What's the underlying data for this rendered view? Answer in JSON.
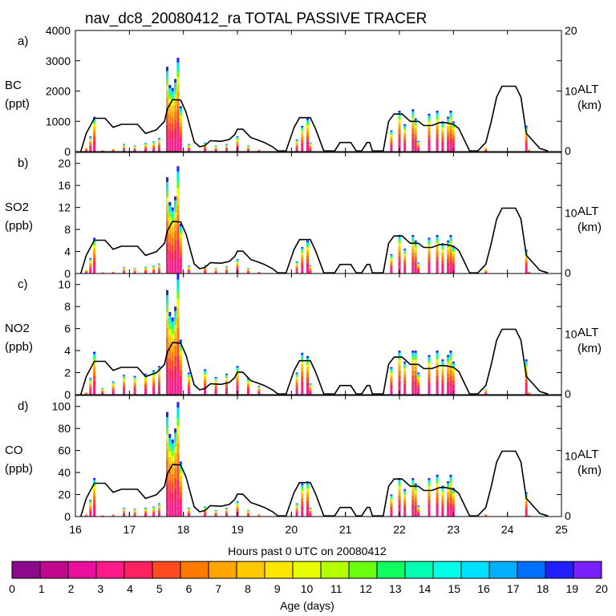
{
  "chart_data": {
    "type": "stacked-area-with-line",
    "title": "nav_dc8_20080412_ra TOTAL PASSIVE TRACER",
    "xlabel": "Hours past 0 UTC on 20080412",
    "x_ticks": [
      "16",
      "17",
      "18",
      "19",
      "20",
      "21",
      "22",
      "23",
      "24",
      "25"
    ],
    "xlim": [
      16,
      25
    ],
    "right_axis": {
      "label": "ALT",
      "units": "(km)",
      "ticks": [
        "0",
        "10",
        "20"
      ],
      "ylim": [
        0,
        20
      ]
    },
    "altitude_km": {
      "x": [
        16.1,
        16.2,
        16.35,
        16.55,
        16.7,
        16.85,
        17.15,
        17.3,
        17.4,
        17.5,
        17.65,
        17.7,
        17.8,
        17.95,
        18.05,
        18.2,
        18.3,
        18.4,
        18.5,
        18.7,
        18.85,
        18.95,
        19.0,
        19.1,
        19.25,
        19.35,
        19.5,
        19.65,
        19.75,
        19.9,
        20.05,
        20.15,
        20.35,
        20.45,
        20.6,
        20.8,
        20.9,
        21.1,
        21.2,
        21.3,
        21.4,
        21.45,
        21.5,
        21.7,
        21.8,
        21.9,
        22.05,
        22.2,
        22.35,
        22.45,
        22.6,
        22.75,
        22.85,
        23.0,
        23.1,
        23.3,
        23.45,
        23.6,
        23.7,
        23.8,
        23.9,
        24.0,
        24.15,
        24.25,
        24.35,
        24.45,
        24.6,
        24.75
      ],
      "y": [
        0,
        3,
        5.5,
        5.5,
        4,
        4.5,
        4.5,
        3,
        3.3,
        3.6,
        5,
        7,
        8.6,
        8.5,
        6.5,
        1.6,
        0.8,
        1,
        1.8,
        1.7,
        2,
        2.8,
        3.7,
        3.7,
        2.3,
        2,
        1.5,
        0.8,
        0.1,
        0.1,
        4,
        5.6,
        5.6,
        3.7,
        0.1,
        0.1,
        1.5,
        1.5,
        0.1,
        0.1,
        1.5,
        1.5,
        0.1,
        0.1,
        5,
        6.2,
        6.2,
        5,
        5,
        4.3,
        4.3,
        4.8,
        4.8,
        4.5,
        3.8,
        0.1,
        0.1,
        1.5,
        5,
        9,
        10.8,
        10.8,
        10.8,
        9,
        3,
        2,
        0.5,
        0.1
      ]
    },
    "age_colorbar": {
      "label": "Age (days)",
      "ticks": [
        "0",
        "1",
        "2",
        "3",
        "4",
        "5",
        "6",
        "7",
        "8",
        "9",
        "10",
        "11",
        "12",
        "13",
        "14",
        "15",
        "16",
        "17",
        "18",
        "19",
        "20"
      ],
      "colors": [
        "#8b0a8b",
        "#c0088e",
        "#e8109c",
        "#ff1a8c",
        "#ff2060",
        "#ff4a20",
        "#ff7a00",
        "#ffa500",
        "#ffc800",
        "#ffe600",
        "#e8ff00",
        "#b4ff00",
        "#6aff10",
        "#10ff60",
        "#00ffb0",
        "#00ffe6",
        "#00e0ff",
        "#00b0ff",
        "#0070ff",
        "#2020ff",
        "#7a20ff"
      ]
    },
    "panels": [
      {
        "letter": "a)",
        "species": "BC",
        "units": "(ppt)",
        "ylim": [
          0,
          4000
        ],
        "y_ticks": [
          "0",
          "1000",
          "2000",
          "3000",
          "4000"
        ],
        "tracer": {
          "x": [
            16.2,
            16.28,
            16.35,
            16.5,
            16.7,
            16.9,
            17.1,
            17.3,
            17.45,
            17.55,
            17.7,
            17.75,
            17.8,
            17.85,
            17.9,
            17.95,
            18.1,
            18.4,
            18.6,
            18.8,
            19.0,
            19.2,
            19.4,
            20.1,
            20.2,
            20.3,
            20.35,
            21.85,
            22.0,
            22.1,
            22.25,
            22.3,
            22.35,
            22.55,
            22.7,
            22.8,
            22.9,
            22.95,
            23.0,
            23.6,
            24.35,
            24.4
          ],
          "y": [
            150,
            500,
            1150,
            80,
            120,
            250,
            200,
            280,
            330,
            450,
            2800,
            2200,
            2100,
            2400,
            3100,
            1500,
            250,
            300,
            200,
            250,
            500,
            200,
            100,
            400,
            850,
            1100,
            300,
            700,
            1350,
            900,
            1400,
            1100,
            350,
            1250,
            1350,
            1000,
            1150,
            1350,
            1000,
            150,
            850,
            100
          ]
        }
      },
      {
        "letter": "b)",
        "species": "SO2",
        "units": "(ppb)",
        "ylim": [
          0,
          22
        ],
        "y_ticks": [
          "0",
          "4",
          "8",
          "12",
          "16",
          "20"
        ],
        "tracer": {
          "x": [
            16.2,
            16.28,
            16.35,
            16.5,
            16.7,
            16.9,
            17.1,
            17.3,
            17.45,
            17.55,
            17.7,
            17.75,
            17.8,
            17.85,
            17.9,
            17.95,
            18.1,
            18.4,
            18.6,
            18.8,
            19.0,
            19.2,
            19.4,
            20.1,
            20.2,
            20.3,
            20.35,
            21.85,
            22.0,
            22.1,
            22.25,
            22.3,
            22.35,
            22.55,
            22.7,
            22.8,
            22.9,
            22.95,
            23.0,
            23.6,
            24.35,
            24.4
          ],
          "y": [
            0.8,
            2.8,
            6.5,
            0.4,
            0.5,
            1.2,
            1.0,
            1.2,
            1.4,
            1.8,
            17.5,
            13,
            12,
            14,
            19.5,
            9,
            1.4,
            1.5,
            1.0,
            1.3,
            2.6,
            1.0,
            0.5,
            2.2,
            4.8,
            6,
            1.5,
            3.5,
            7,
            4.5,
            7,
            6,
            2,
            6.5,
            7,
            5.5,
            6,
            7,
            5,
            0.8,
            4.3,
            0.5
          ]
        }
      },
      {
        "letter": "c)",
        "species": "NO2",
        "units": "(ppb)",
        "ylim": [
          0,
          11
        ],
        "y_ticks": [
          "0",
          "2",
          "4",
          "6",
          "8",
          "10"
        ],
        "tracer": {
          "x": [
            16.2,
            16.28,
            16.35,
            16.5,
            16.7,
            16.9,
            17.1,
            17.3,
            17.45,
            17.55,
            17.7,
            17.75,
            17.8,
            17.85,
            17.9,
            17.95,
            18.1,
            18.4,
            18.6,
            18.8,
            19.0,
            19.2,
            19.4,
            20.1,
            20.2,
            20.3,
            20.35,
            21.85,
            22.0,
            22.1,
            22.25,
            22.3,
            22.35,
            22.55,
            22.7,
            22.8,
            22.9,
            22.95,
            23.0,
            23.6,
            24.35,
            24.4
          ],
          "y": [
            0.3,
            1.5,
            3.9,
            0.6,
            1.2,
            1.8,
            1.7,
            1.9,
            2.2,
            2.6,
            9.5,
            7.5,
            7,
            8,
            11,
            5,
            2.0,
            2.3,
            1.6,
            1.9,
            2.6,
            1.5,
            0.8,
            2,
            3.8,
            3.5,
            1,
            2.5,
            4,
            3,
            4,
            4,
            2,
            3.6,
            4,
            3.2,
            3.6,
            4,
            3,
            0.5,
            3.2,
            0.3
          ]
        }
      },
      {
        "letter": "d)",
        "species": "CO",
        "units": "(ppb)",
        "ylim": [
          0,
          110
        ],
        "y_ticks": [
          "0",
          "20",
          "40",
          "60",
          "80",
          "100"
        ],
        "tracer": {
          "x": [
            16.2,
            16.28,
            16.35,
            16.5,
            16.7,
            16.9,
            17.1,
            17.3,
            17.45,
            17.55,
            17.7,
            17.75,
            17.8,
            17.85,
            17.9,
            17.95,
            18.1,
            18.4,
            18.6,
            18.8,
            19.0,
            19.2,
            19.4,
            20.1,
            20.2,
            20.3,
            20.35,
            21.85,
            22.0,
            22.1,
            22.25,
            22.3,
            22.35,
            22.55,
            22.7,
            22.8,
            22.9,
            22.95,
            23.0,
            23.6,
            24.35,
            24.4
          ],
          "y": [
            3,
            15,
            35,
            2,
            3,
            8,
            7,
            8,
            9,
            12,
            95,
            75,
            70,
            80,
            104,
            50,
            8,
            9,
            6,
            8,
            14,
            6,
            3,
            12,
            30,
            32,
            8,
            20,
            35,
            25,
            35,
            30,
            10,
            35,
            38,
            28,
            32,
            38,
            26,
            3,
            22,
            2
          ]
        }
      }
    ]
  }
}
